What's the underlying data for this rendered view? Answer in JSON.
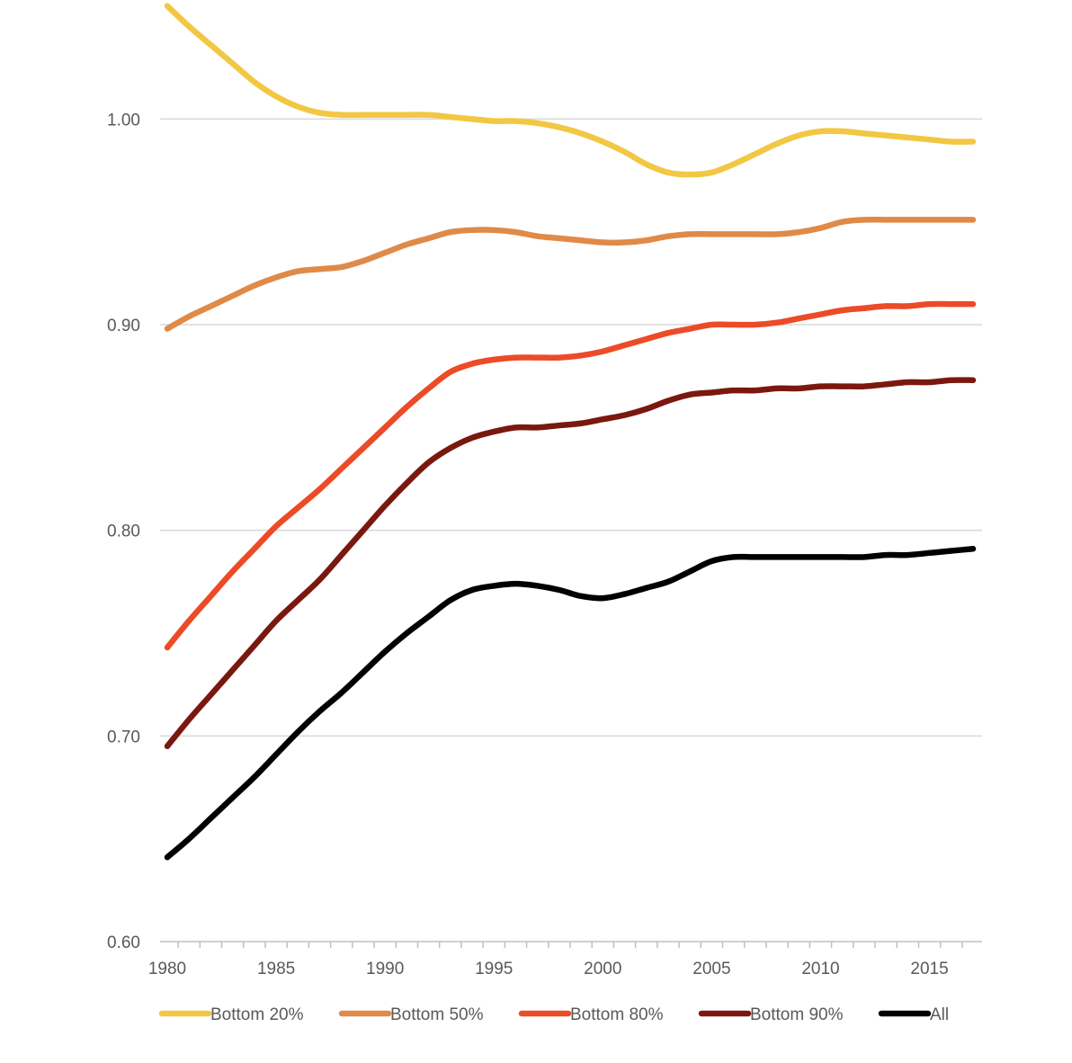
{
  "chart_data": {
    "type": "line",
    "title": "",
    "xlabel": "",
    "ylabel": "",
    "xlim": [
      1980,
      2017
    ],
    "ylim": [
      0.6,
      1.05
    ],
    "y_ticks": [
      "0.60",
      "0.70",
      "0.80",
      "0.90",
      "1.00"
    ],
    "y_tick_values": [
      0.6,
      0.7,
      0.8,
      0.9,
      1.0
    ],
    "x_ticks": [
      "1980",
      "1985",
      "1990",
      "1995",
      "2000",
      "2005",
      "2010",
      "2015"
    ],
    "x_tick_values": [
      1980,
      1985,
      1990,
      1995,
      2000,
      2005,
      2010,
      2015
    ],
    "grid": true,
    "legend_position": "bottom",
    "x": [
      1980,
      1981,
      1982,
      1983,
      1984,
      1985,
      1986,
      1987,
      1988,
      1989,
      1990,
      1991,
      1992,
      1993,
      1994,
      1995,
      1996,
      1997,
      1998,
      1999,
      2000,
      2001,
      2002,
      2003,
      2004,
      2005,
      2006,
      2007,
      2008,
      2009,
      2010,
      2011,
      2012,
      2013,
      2014,
      2015,
      2016,
      2017
    ],
    "series": [
      {
        "name": "Bottom 20%",
        "color": "#f2c744",
        "values": [
          1.055,
          1.045,
          1.036,
          1.027,
          1.018,
          1.011,
          1.006,
          1.003,
          1.002,
          1.002,
          1.002,
          1.002,
          1.002,
          1.001,
          1.0,
          0.999,
          0.999,
          0.998,
          0.996,
          0.993,
          0.989,
          0.984,
          0.978,
          0.974,
          0.973,
          0.974,
          0.978,
          0.983,
          0.988,
          0.992,
          0.994,
          0.994,
          0.993,
          0.992,
          0.991,
          0.99,
          0.989,
          0.989
        ]
      },
      {
        "name": "Bottom 50%",
        "color": "#e08a48",
        "values": [
          0.898,
          0.904,
          0.909,
          0.914,
          0.919,
          0.923,
          0.926,
          0.927,
          0.928,
          0.931,
          0.935,
          0.939,
          0.942,
          0.945,
          0.946,
          0.946,
          0.945,
          0.943,
          0.942,
          0.941,
          0.94,
          0.94,
          0.941,
          0.943,
          0.944,
          0.944,
          0.944,
          0.944,
          0.944,
          0.945,
          0.947,
          0.95,
          0.951,
          0.951,
          0.951,
          0.951,
          0.951,
          0.951
        ]
      },
      {
        "name": "Bottom 80%",
        "color": "#ec4b27",
        "values": [
          0.743,
          0.756,
          0.768,
          0.78,
          0.791,
          0.802,
          0.811,
          0.82,
          0.83,
          0.84,
          0.85,
          0.86,
          0.869,
          0.877,
          0.881,
          0.883,
          0.884,
          0.884,
          0.884,
          0.885,
          0.887,
          0.89,
          0.893,
          0.896,
          0.898,
          0.9,
          0.9,
          0.9,
          0.901,
          0.903,
          0.905,
          0.907,
          0.908,
          0.909,
          0.909,
          0.91,
          0.91,
          0.91
        ]
      },
      {
        "name": "Bottom 90%",
        "color": "#7a1810",
        "values": [
          0.695,
          0.708,
          0.72,
          0.732,
          0.744,
          0.756,
          0.766,
          0.776,
          0.788,
          0.8,
          0.812,
          0.823,
          0.833,
          0.84,
          0.845,
          0.848,
          0.85,
          0.85,
          0.851,
          0.852,
          0.854,
          0.856,
          0.859,
          0.863,
          0.866,
          0.867,
          0.868,
          0.868,
          0.869,
          0.869,
          0.87,
          0.87,
          0.87,
          0.871,
          0.872,
          0.872,
          0.873,
          0.873
        ]
      },
      {
        "name": "All",
        "color": "#000000",
        "values": [
          0.641,
          0.65,
          0.66,
          0.67,
          0.68,
          0.691,
          0.702,
          0.712,
          0.721,
          0.731,
          0.741,
          0.75,
          0.758,
          0.766,
          0.771,
          0.773,
          0.774,
          0.773,
          0.771,
          0.768,
          0.767,
          0.769,
          0.772,
          0.775,
          0.78,
          0.785,
          0.787,
          0.787,
          0.787,
          0.787,
          0.787,
          0.787,
          0.787,
          0.788,
          0.788,
          0.789,
          0.79,
          0.791
        ]
      }
    ]
  }
}
